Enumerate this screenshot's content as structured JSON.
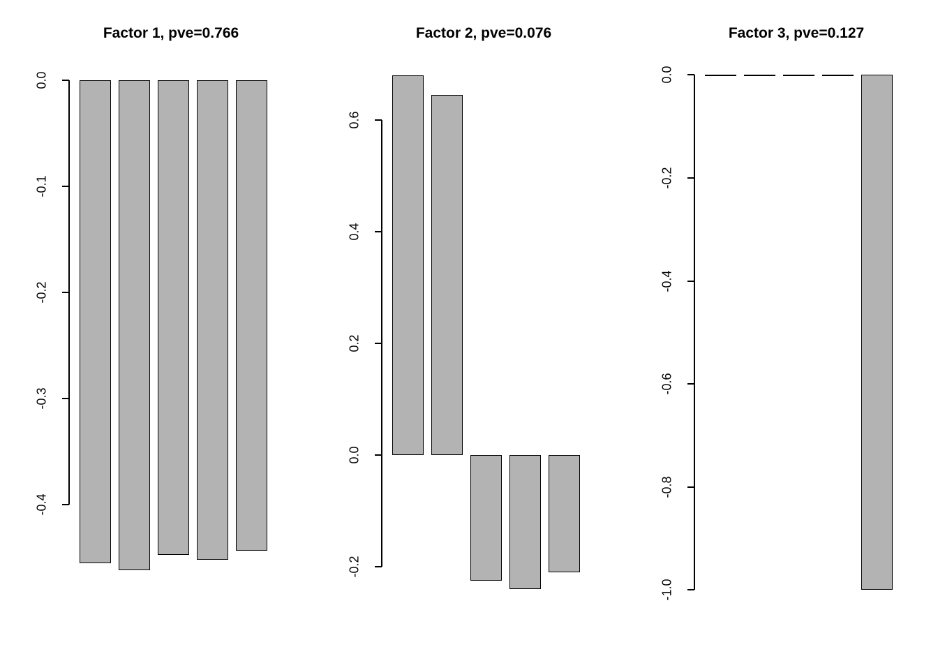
{
  "page": {
    "background": "#ffffff"
  },
  "chart_data": [
    {
      "type": "bar",
      "title": "Factor 1, pve=0.766",
      "values": [
        -0.455,
        -0.462,
        -0.447,
        -0.452,
        -0.443
      ],
      "ylim": [
        -0.49,
        0.01
      ],
      "yticks": [
        0.0,
        -0.1,
        -0.2,
        -0.3,
        -0.4
      ],
      "ytick_labels": [
        "0.0",
        "-0.1",
        "-0.2",
        "-0.3",
        "-0.4"
      ],
      "xlabel": "",
      "ylabel": "",
      "grid": false,
      "legend": "none",
      "bar_color": "#b3b3b3",
      "bar_border_color": "#000000"
    },
    {
      "type": "bar",
      "title": "Factor 2, pve=0.076",
      "values": [
        0.68,
        0.645,
        -0.225,
        -0.24,
        -0.21
      ],
      "ylim": [
        -0.26,
        0.69
      ],
      "yticks": [
        0.6,
        0.4,
        0.2,
        0.0,
        -0.2
      ],
      "ytick_labels": [
        "0.6",
        "0.4",
        "0.2",
        "0.0",
        "-0.2"
      ],
      "xlabel": "",
      "ylabel": "",
      "grid": false,
      "legend": "none",
      "bar_color": "#b3b3b3",
      "bar_border_color": "#000000"
    },
    {
      "type": "bar",
      "title": "Factor 3, pve=0.127",
      "values": [
        -0.002,
        -0.002,
        -0.002,
        -0.002,
        -1.0
      ],
      "ylim": [
        -1.02,
        0.01
      ],
      "yticks": [
        0.0,
        -0.2,
        -0.4,
        -0.6,
        -0.8,
        -1.0
      ],
      "ytick_labels": [
        "0.0",
        "-0.2",
        "-0.4",
        "-0.6",
        "-0.8",
        "-1.0"
      ],
      "xlabel": "",
      "ylabel": "",
      "grid": false,
      "legend": "none",
      "bar_color": "#b3b3b3",
      "bar_border_color": "#000000"
    }
  ]
}
